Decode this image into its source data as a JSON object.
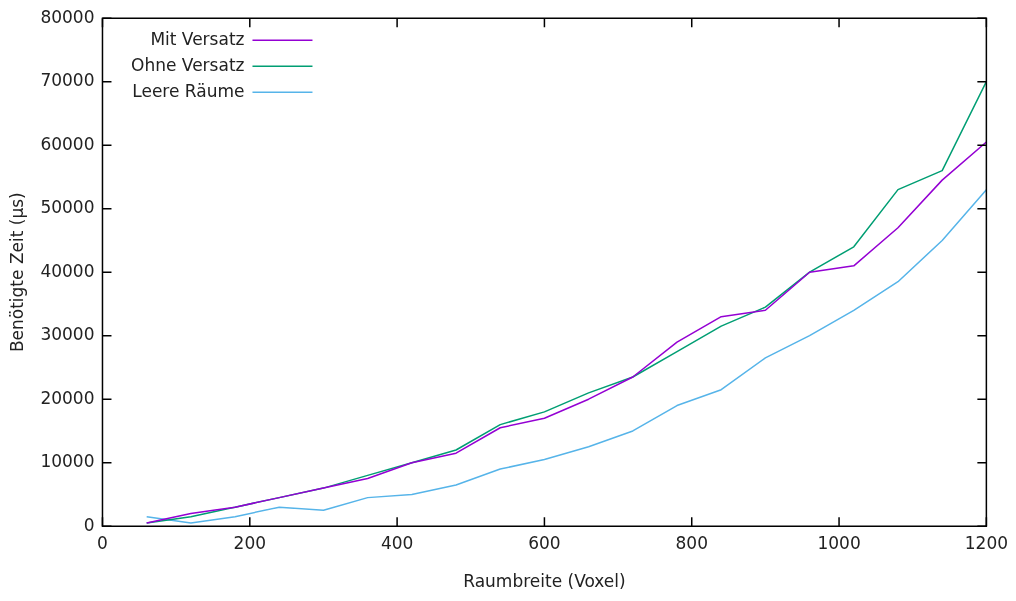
{
  "chart_data": {
    "type": "line",
    "xlabel": "Raumbreite (Voxel)",
    "ylabel": "Benötigte Zeit (µs)",
    "x": [
      60,
      120,
      180,
      240,
      300,
      360,
      420,
      480,
      540,
      600,
      660,
      720,
      780,
      840,
      900,
      960,
      1020,
      1080,
      1140,
      1200
    ],
    "series": [
      {
        "name": "Mit Versatz",
        "color": "#9400d3",
        "values": [
          500,
          2000,
          3000,
          4500,
          6000,
          7500,
          10000,
          11500,
          15500,
          17000,
          20000,
          23500,
          29000,
          33000,
          34000,
          40000,
          41000,
          47000,
          54500,
          60500
        ]
      },
      {
        "name": "Ohne Versatz",
        "color": "#009e73",
        "values": [
          500,
          1500,
          3000,
          4500,
          6000,
          8000,
          10000,
          12000,
          16000,
          18000,
          21000,
          23500,
          27500,
          31500,
          34500,
          40000,
          44000,
          53000,
          56000,
          70000
        ]
      },
      {
        "name": "Leere Räume",
        "color": "#56b4e9",
        "values": [
          1500,
          500,
          1500,
          3000,
          2500,
          4500,
          5000,
          6500,
          9000,
          10500,
          12500,
          15000,
          19000,
          21500,
          26500,
          30000,
          34000,
          38500,
          45000,
          53000
        ]
      }
    ],
    "xlim": [
      0,
      1200
    ],
    "xticks": [
      0,
      200,
      400,
      600,
      800,
      1000,
      1200
    ],
    "ylim": [
      0,
      80000
    ],
    "yticks": [
      0,
      10000,
      20000,
      30000,
      40000,
      50000,
      60000,
      70000,
      80000
    ],
    "grid": false,
    "legend": "top left",
    "marker": "none",
    "line_style": "solid"
  }
}
